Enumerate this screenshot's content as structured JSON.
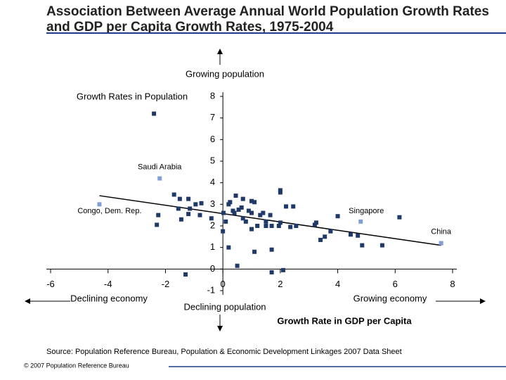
{
  "chart_data": {
    "type": "scatter",
    "title": "Association Between Average Annual World Population Growth Rates and GDP per Capita Growth Rates, 1975-2004",
    "ylabel": "Growth Rates in Population",
    "xlabel": "Growth Rate in GDP per Capita",
    "annotations": {
      "up": "Growing population",
      "down": "Declining population",
      "left": "Declining economy",
      "right": "Growing economy"
    },
    "source": "Source: Population Reference Bureau, Population & Economic Development Linkages 2007 Data Sheet",
    "copyright": "© 2007 Population Reference Bureau",
    "xlim": [
      -6,
      8
    ],
    "xticks": [
      -6,
      -4,
      -2,
      0,
      2,
      4,
      6,
      8
    ],
    "ylim": [
      -1,
      8
    ],
    "yticks": [
      -1,
      0,
      1,
      2,
      3,
      4,
      5,
      6,
      7,
      8
    ],
    "trendline": {
      "color": "#000000",
      "x": [
        -4.3,
        7.6
      ],
      "values": [
        3.4,
        1.1
      ]
    },
    "series": [
      {
        "color": "#1f3a68",
        "x": [
          -2.4,
          -2.25,
          -2.3,
          -1.7,
          -1.5,
          -1.45,
          -1.55,
          -1.2,
          -1.15,
          -1.2,
          -0.95,
          -0.8,
          -0.75,
          -1.3,
          -0.4,
          0.02,
          0,
          0.1,
          0.2,
          0.25,
          0.35,
          0.2,
          0.45,
          0.4,
          0.55,
          0.65,
          0.7,
          0.7,
          0.8,
          0.9,
          1.0,
          1.1,
          1.0,
          1.0,
          1.1,
          1.2,
          1.3,
          1.4,
          1.5,
          1.5,
          1.65,
          1.7,
          1.7,
          1.7,
          2.0,
          2.0,
          1.95,
          2.0,
          2.1,
          2.2,
          2.45,
          2.35,
          2.55,
          3.2,
          3.25,
          3.4,
          3.55,
          3.75,
          4.0,
          4.45,
          4.7,
          4.85,
          5.55,
          6.15,
          0.5
        ],
        "values": [
          7.2,
          2.5,
          2.05,
          3.45,
          3.25,
          2.3,
          2.8,
          3.25,
          2.8,
          2.55,
          3.0,
          2.5,
          3.05,
          -0.25,
          2.35,
          2.6,
          1.75,
          2.2,
          3.0,
          3.1,
          2.7,
          1.0,
          3.4,
          2.6,
          2.75,
          2.85,
          3.25,
          2.35,
          2.2,
          2.7,
          3.15,
          3.1,
          2.6,
          1.85,
          0.8,
          2.0,
          2.5,
          2.6,
          2.2,
          2.0,
          2.5,
          2.0,
          0.9,
          -0.15,
          3.65,
          3.55,
          2.0,
          2.15,
          -0.05,
          2.9,
          2.9,
          1.95,
          2.0,
          2.05,
          2.15,
          1.35,
          1.5,
          1.75,
          2.45,
          1.6,
          1.55,
          1.1,
          1.1,
          2.4,
          0.15
        ]
      },
      {
        "color": "#7f9fd6",
        "x": [
          -2.2,
          -4.3,
          4.8,
          7.6
        ],
        "values": [
          4.2,
          3.0,
          2.2,
          1.2
        ],
        "labels": [
          "Saudi Arabia",
          "Congo, Dem. Rep.",
          "Singapore",
          "China"
        ]
      }
    ]
  }
}
